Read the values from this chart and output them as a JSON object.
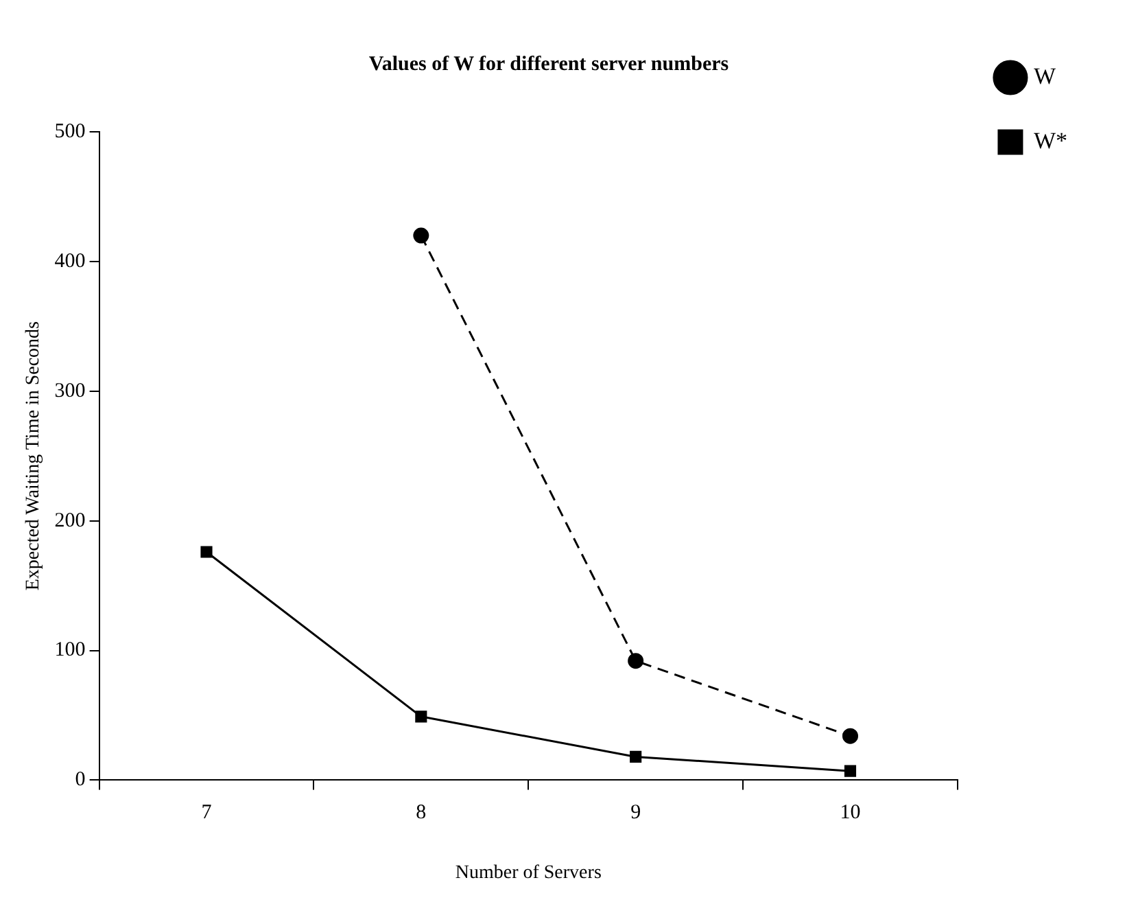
{
  "chart_data": {
    "type": "line",
    "title": "Values of W for different server numbers",
    "xlabel": "Number of Servers",
    "ylabel": "Expected Waiting Time in Seconds",
    "categories": [
      "7",
      "8",
      "9",
      "10"
    ],
    "series": [
      {
        "name": "W",
        "color": "#000000",
        "values": [
          null,
          420,
          92,
          34
        ],
        "marker": "circle",
        "line_style": "dashed"
      },
      {
        "name": "W*",
        "color": "#000000",
        "values": [
          176,
          49,
          18,
          7
        ],
        "marker": "square",
        "line_style": "solid"
      }
    ],
    "ylim": [
      0,
      500
    ],
    "yticks": [
      0,
      100,
      200,
      300,
      400,
      500
    ],
    "grid": false,
    "legend": "top right"
  }
}
